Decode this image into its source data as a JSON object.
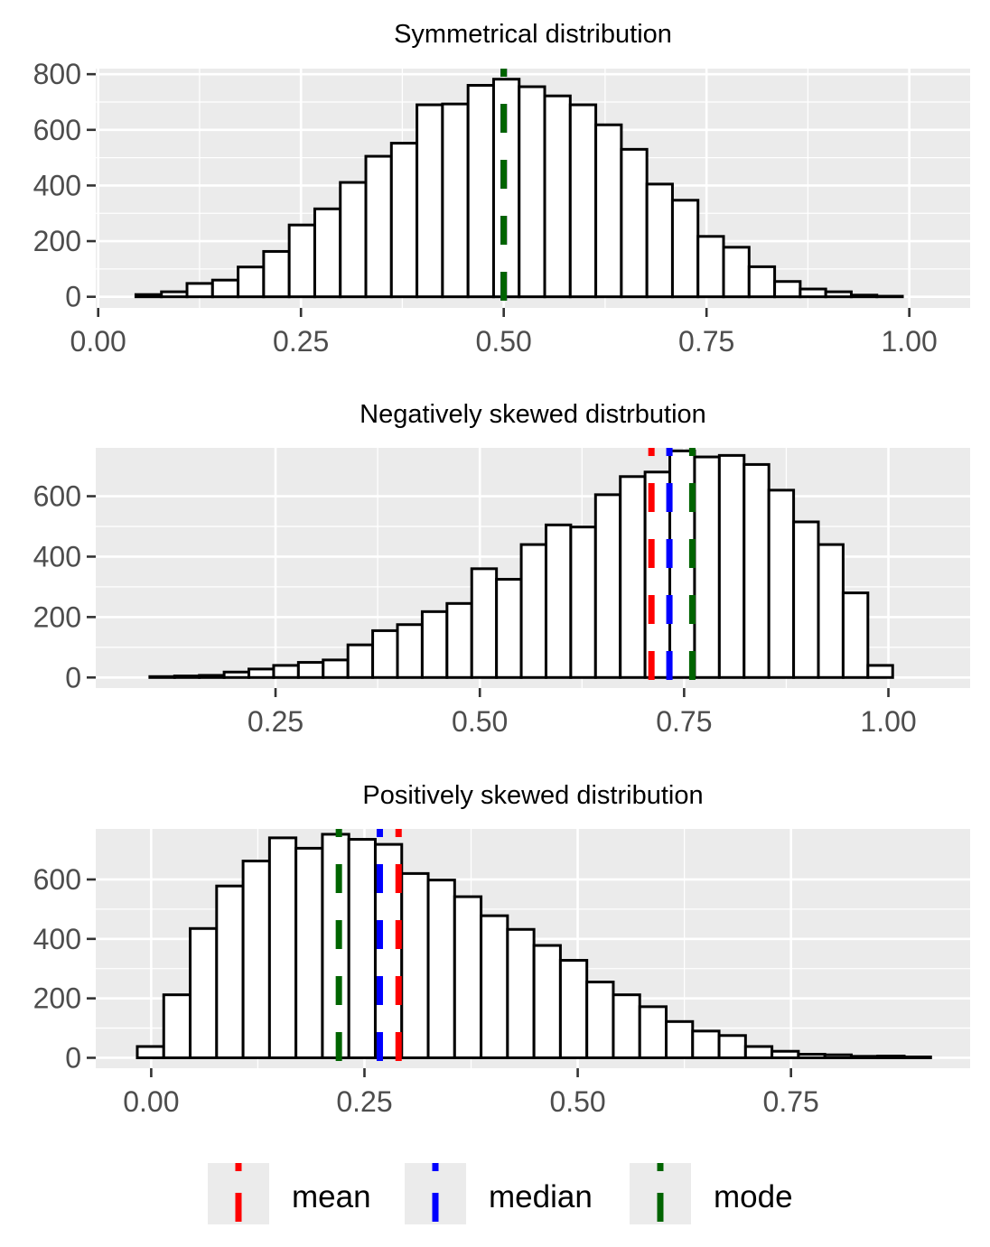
{
  "chart_data": [
    {
      "type": "bar",
      "subtype": "histogram",
      "title": "Symmetrical distribution",
      "bin_width": 0.0315,
      "bin_start": 0.0465,
      "values": [
        8,
        18,
        48,
        60,
        107,
        163,
        258,
        316,
        411,
        505,
        552,
        690,
        693,
        760,
        782,
        755,
        722,
        690,
        618,
        530,
        405,
        347,
        217,
        178,
        108,
        55,
        28,
        18,
        6,
        2
      ],
      "xlim": [
        -0.003,
        1.075
      ],
      "ylim": [
        -40,
        820
      ],
      "xticks": [
        "0.00",
        "0.25",
        "0.50",
        "0.75",
        "1.00"
      ],
      "yticks": [
        "0",
        "200",
        "400",
        "600",
        "800"
      ],
      "vlines": [
        {
          "stat": "mean",
          "x": 0.5,
          "color": "#ff0000"
        },
        {
          "stat": "median",
          "x": 0.5,
          "color": "#0000ff"
        },
        {
          "stat": "mode",
          "x": 0.5,
          "color": "#006400"
        }
      ]
    },
    {
      "type": "bar",
      "subtype": "histogram",
      "title": "Negatively skewed distrbution",
      "bin_width": 0.0303,
      "bin_start": 0.0962,
      "values": [
        3,
        5,
        7,
        18,
        28,
        40,
        50,
        58,
        108,
        155,
        175,
        218,
        245,
        360,
        325,
        440,
        505,
        498,
        605,
        665,
        680,
        750,
        730,
        735,
        705,
        620,
        515,
        440,
        280,
        40
      ],
      "xlim": [
        0.03,
        1.1
      ],
      "ylim": [
        -35,
        760
      ],
      "xticks": [
        "0.25",
        "0.50",
        "0.75",
        "1.00"
      ],
      "yticks": [
        "0",
        "200",
        "400",
        "600"
      ],
      "vlines": [
        {
          "stat": "mean",
          "x": 0.71,
          "color": "#ff0000"
        },
        {
          "stat": "median",
          "x": 0.732,
          "color": "#0000ff"
        },
        {
          "stat": "mode",
          "x": 0.76,
          "color": "#006400"
        }
      ]
    },
    {
      "type": "bar",
      "subtype": "histogram",
      "title": "Positively skewed distribution",
      "bin_width": 0.031,
      "bin_start": -0.0163,
      "values": [
        38,
        212,
        435,
        578,
        662,
        740,
        705,
        752,
        735,
        718,
        620,
        598,
        542,
        478,
        432,
        378,
        328,
        255,
        212,
        172,
        122,
        90,
        75,
        38,
        22,
        12,
        10,
        5,
        6,
        3
      ],
      "xlim": [
        -0.065,
        0.96
      ],
      "ylim": [
        -35,
        770
      ],
      "xticks": [
        "0.00",
        "0.25",
        "0.50",
        "0.75"
      ],
      "yticks": [
        "0",
        "200",
        "400",
        "600"
      ],
      "vlines": [
        {
          "stat": "mean",
          "x": 0.29,
          "color": "#ff0000"
        },
        {
          "stat": "median",
          "x": 0.268,
          "color": "#0000ff"
        },
        {
          "stat": "mode",
          "x": 0.22,
          "color": "#006400"
        }
      ]
    }
  ],
  "legend": {
    "placement": "bottom",
    "items": [
      {
        "label": "mean",
        "color": "#ff0000"
      },
      {
        "label": "median",
        "color": "#0000ff"
      },
      {
        "label": "mode",
        "color": "#006400"
      }
    ]
  },
  "colors": {
    "panel_bg": "#ebebeb",
    "grid": "#ffffff",
    "bar_fill": "#ffffff",
    "bar_stroke": "#000000",
    "tick_text": "#4d4d4d"
  }
}
